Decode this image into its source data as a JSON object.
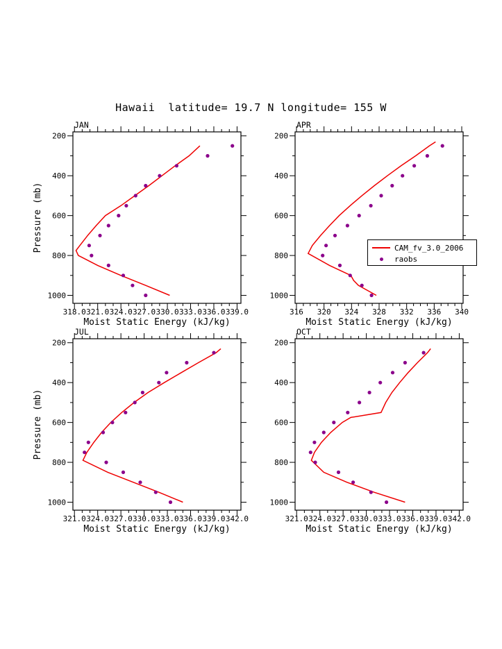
{
  "title": "Hawaii  latitude= 19.7 N longitude= 155 W",
  "colors": {
    "model_line": "#ee0000",
    "obs_dot": "#8b008b",
    "axis": "#000000"
  },
  "legend": {
    "entries": [
      {
        "label": "CAM_fv_3.0_2006",
        "type": "line",
        "color": "#ee0000"
      },
      {
        "label": "raobs",
        "type": "dot",
        "color": "#8b008b"
      }
    ]
  },
  "chart_data": [
    {
      "type": "line",
      "month": "JAN",
      "xlabel": "Moist Static Energy (kJ/kg)",
      "ylabel": "Pressure (mb)",
      "xlim": [
        317.8,
        339.5
      ],
      "ylim": [
        180,
        1040
      ],
      "y_axis_reversed": true,
      "xticks": [
        318,
        321,
        324,
        327,
        330,
        333,
        336,
        339
      ],
      "xtick_decimals": 1,
      "yticks": [
        200,
        400,
        600,
        800,
        1000
      ],
      "x_minor_step": 1,
      "y_minor_step": 100,
      "series": [
        {
          "name": "CAM_fv_3.0_2006",
          "type": "line",
          "pressure": [
            250,
            300,
            350,
            400,
            450,
            500,
            550,
            600,
            650,
            700,
            750,
            775,
            800,
            850,
            900,
            950,
            1000
          ],
          "values": [
            334.2,
            332.8,
            331.0,
            329.3,
            327.6,
            325.8,
            324.0,
            322.0,
            320.8,
            319.7,
            318.7,
            318.2,
            318.5,
            321.0,
            324.0,
            327.2,
            330.3
          ]
        },
        {
          "name": "raobs",
          "type": "scatter",
          "pressure": [
            250,
            300,
            350,
            400,
            450,
            500,
            550,
            600,
            650,
            700,
            750,
            800,
            850,
            900,
            950,
            1000
          ],
          "values": [
            338.4,
            335.2,
            331.2,
            329.0,
            327.2,
            325.9,
            324.7,
            323.7,
            322.4,
            321.3,
            319.9,
            320.2,
            322.4,
            324.3,
            325.5,
            327.2
          ]
        }
      ]
    },
    {
      "type": "line",
      "month": "APR",
      "xlabel": "Moist Static Energy (kJ/kg)",
      "ylabel": "Pressure (mb)",
      "xlim": [
        315.8,
        340.2
      ],
      "ylim": [
        180,
        1040
      ],
      "y_axis_reversed": true,
      "xticks": [
        316,
        320,
        324,
        328,
        332,
        336,
        340
      ],
      "xtick_decimals": 0,
      "yticks": [
        200,
        400,
        600,
        800,
        1000
      ],
      "x_minor_step": 1,
      "y_minor_step": 100,
      "series": [
        {
          "name": "CAM_fv_3.0_2006",
          "type": "line",
          "pressure": [
            230,
            250,
            300,
            350,
            400,
            450,
            500,
            550,
            600,
            650,
            700,
            750,
            790,
            850,
            900,
            925,
            950,
            1000
          ],
          "values": [
            336.2,
            335.3,
            333.3,
            331.2,
            329.2,
            327.3,
            325.5,
            323.8,
            322.2,
            320.8,
            319.5,
            318.3,
            317.7,
            320.8,
            323.9,
            324.3,
            325.0,
            327.6
          ]
        },
        {
          "name": "raobs",
          "type": "scatter",
          "pressure": [
            250,
            300,
            350,
            400,
            450,
            500,
            550,
            600,
            650,
            700,
            750,
            800,
            850,
            900,
            950,
            1000
          ],
          "values": [
            337.2,
            335.0,
            333.1,
            331.4,
            329.9,
            328.3,
            326.8,
            325.1,
            323.4,
            321.6,
            320.3,
            319.8,
            322.3,
            323.8,
            325.5,
            326.9
          ]
        }
      ]
    },
    {
      "type": "line",
      "month": "JUL",
      "xlabel": "Moist Static Energy (kJ/kg)",
      "ylabel": "Pressure (mb)",
      "xlim": [
        320.8,
        342.5
      ],
      "ylim": [
        180,
        1040
      ],
      "y_axis_reversed": true,
      "xticks": [
        321,
        324,
        327,
        330,
        333,
        336,
        339,
        342
      ],
      "xtick_decimals": 1,
      "yticks": [
        200,
        400,
        600,
        800,
        1000
      ],
      "x_minor_step": 1,
      "y_minor_step": 100,
      "series": [
        {
          "name": "CAM_fv_3.0_2006",
          "type": "line",
          "pressure": [
            230,
            250,
            300,
            350,
            400,
            450,
            500,
            550,
            600,
            650,
            700,
            750,
            790,
            850,
            900,
            950,
            1000
          ],
          "values": [
            339.9,
            339.3,
            337.0,
            334.8,
            332.6,
            330.5,
            328.7,
            327.1,
            325.7,
            324.5,
            323.5,
            322.6,
            322.1,
            325.3,
            328.6,
            331.9,
            335.0
          ]
        },
        {
          "name": "raobs",
          "type": "scatter",
          "pressure": [
            250,
            300,
            350,
            400,
            450,
            500,
            550,
            600,
            650,
            700,
            750,
            800,
            850,
            900,
            950,
            1000
          ],
          "values": [
            339.0,
            335.5,
            332.9,
            331.9,
            329.8,
            328.8,
            327.6,
            325.9,
            324.7,
            322.8,
            322.3,
            325.1,
            327.3,
            329.5,
            331.5,
            333.4
          ]
        }
      ]
    },
    {
      "type": "line",
      "month": "OCT",
      "xlabel": "Moist Static Energy (kJ/kg)",
      "ylabel": "Pressure (mb)",
      "xlim": [
        320.8,
        342.5
      ],
      "ylim": [
        180,
        1040
      ],
      "y_axis_reversed": true,
      "xticks": [
        321,
        324,
        327,
        330,
        333,
        336,
        339,
        342
      ],
      "xtick_decimals": 1,
      "yticks": [
        200,
        400,
        600,
        800,
        1000
      ],
      "x_minor_step": 1,
      "y_minor_step": 100,
      "series": [
        {
          "name": "CAM_fv_3.0_2006",
          "type": "line",
          "pressure": [
            230,
            250,
            300,
            350,
            400,
            450,
            500,
            550,
            575,
            600,
            650,
            700,
            750,
            790,
            850,
            900,
            950,
            1000
          ],
          "values": [
            338.3,
            337.9,
            336.6,
            335.4,
            334.3,
            333.3,
            332.5,
            331.9,
            328.0,
            326.9,
            325.4,
            324.2,
            323.3,
            322.9,
            324.5,
            327.5,
            331.0,
            335.0
          ]
        },
        {
          "name": "raobs",
          "type": "scatter",
          "pressure": [
            250,
            300,
            350,
            400,
            450,
            500,
            550,
            600,
            650,
            700,
            750,
            800,
            850,
            900,
            950,
            1000
          ],
          "values": [
            337.4,
            335.0,
            333.4,
            331.8,
            330.4,
            329.1,
            327.6,
            325.8,
            324.5,
            323.3,
            322.8,
            323.4,
            326.4,
            328.3,
            330.6,
            332.6
          ]
        }
      ]
    }
  ]
}
